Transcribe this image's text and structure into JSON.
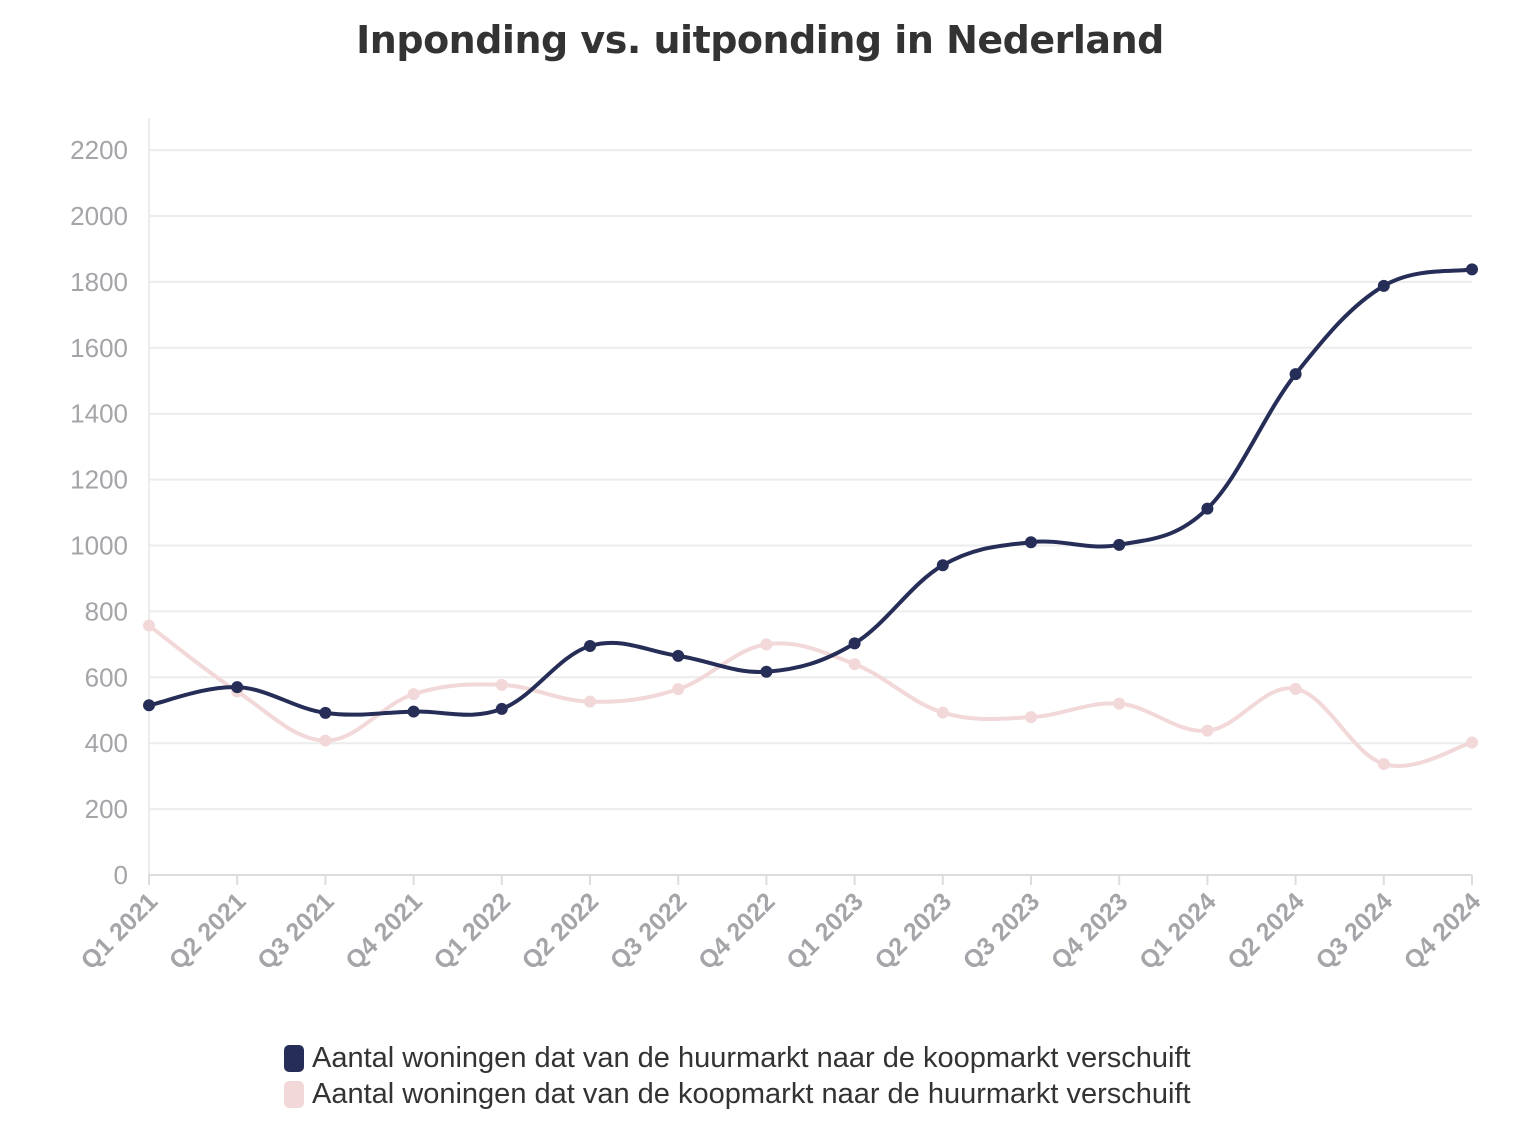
{
  "chart_data": {
    "type": "line",
    "title": "Inponding vs. uitponding in Nederland",
    "xlabel": "",
    "ylabel": "",
    "categories": [
      "Q1 2021",
      "Q2 2021",
      "Q3 2021",
      "Q4 2021",
      "Q1 2022",
      "Q2 2022",
      "Q3 2022",
      "Q4 2022",
      "Q1 2023",
      "Q2 2023",
      "Q3 2023",
      "Q4 2023",
      "Q1 2024",
      "Q2 2024",
      "Q3 2024",
      "Q4 2024"
    ],
    "y_ticks": [
      0,
      200,
      400,
      600,
      800,
      1000,
      1200,
      1400,
      1600,
      1800,
      2000,
      2200
    ],
    "ylim": [
      0,
      2300
    ],
    "grid": true,
    "legend_position": "bottom",
    "series": [
      {
        "name": "Aantal woningen dat van de huurmarkt naar de koopmarkt verschuift",
        "color": "#262d57",
        "values": [
          515,
          570,
          492,
          496,
          504,
          695,
          665,
          617,
          703,
          940,
          1010,
          1002,
          1112,
          1520,
          1788,
          1838
        ]
      },
      {
        "name": "Aantal woningen dat van de koopmarkt naar de huurmarkt verschuift",
        "color": "#f2d8d8",
        "values": [
          757,
          557,
          408,
          549,
          577,
          526,
          564,
          700,
          640,
          493,
          479,
          520,
          438,
          565,
          337,
          402
        ]
      }
    ]
  }
}
